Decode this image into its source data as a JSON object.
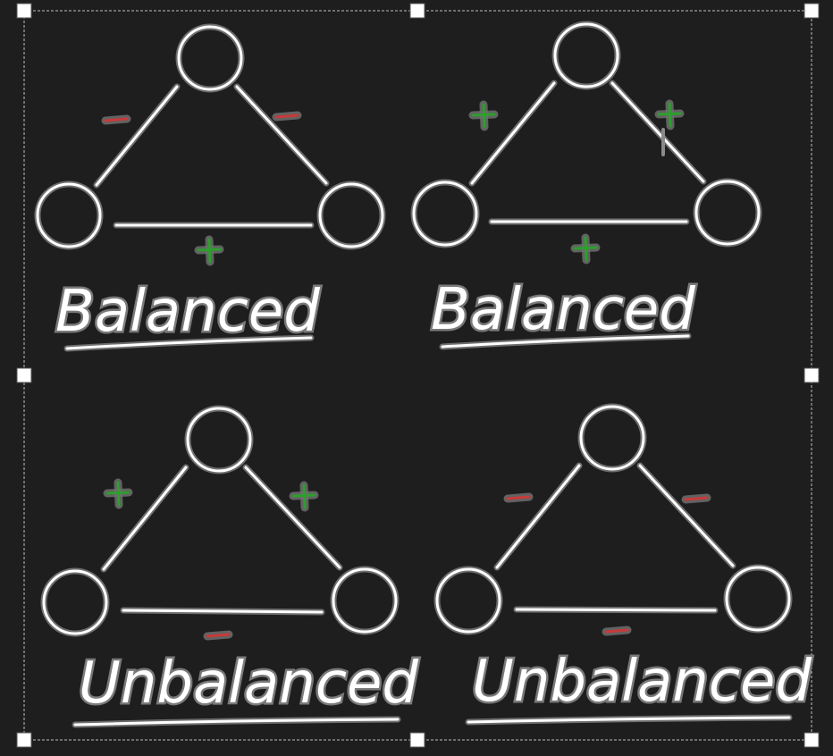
{
  "panels": [
    {
      "label": "Balanced",
      "signs": {
        "left_edge": "-",
        "right_edge": "-",
        "bottom_edge": "+"
      }
    },
    {
      "label": "Balanced",
      "signs": {
        "left_edge": "+",
        "right_edge": "+",
        "bottom_edge": "+"
      }
    },
    {
      "label": "Unbalanced",
      "signs": {
        "left_edge": "+",
        "right_edge": "+",
        "bottom_edge": "-"
      }
    },
    {
      "label": "Unbalanced",
      "signs": {
        "left_edge": "-",
        "right_edge": "-",
        "bottom_edge": "-"
      }
    }
  ],
  "colors": {
    "background": "#1e1e1e",
    "positive_sign": "#2e9e2e",
    "negative_sign": "#c83a3a",
    "stroke_halo": "#6e6e6e",
    "stroke_core": "#ffffff"
  },
  "sign_symbols": {
    "positive": "+",
    "negative": "-"
  }
}
